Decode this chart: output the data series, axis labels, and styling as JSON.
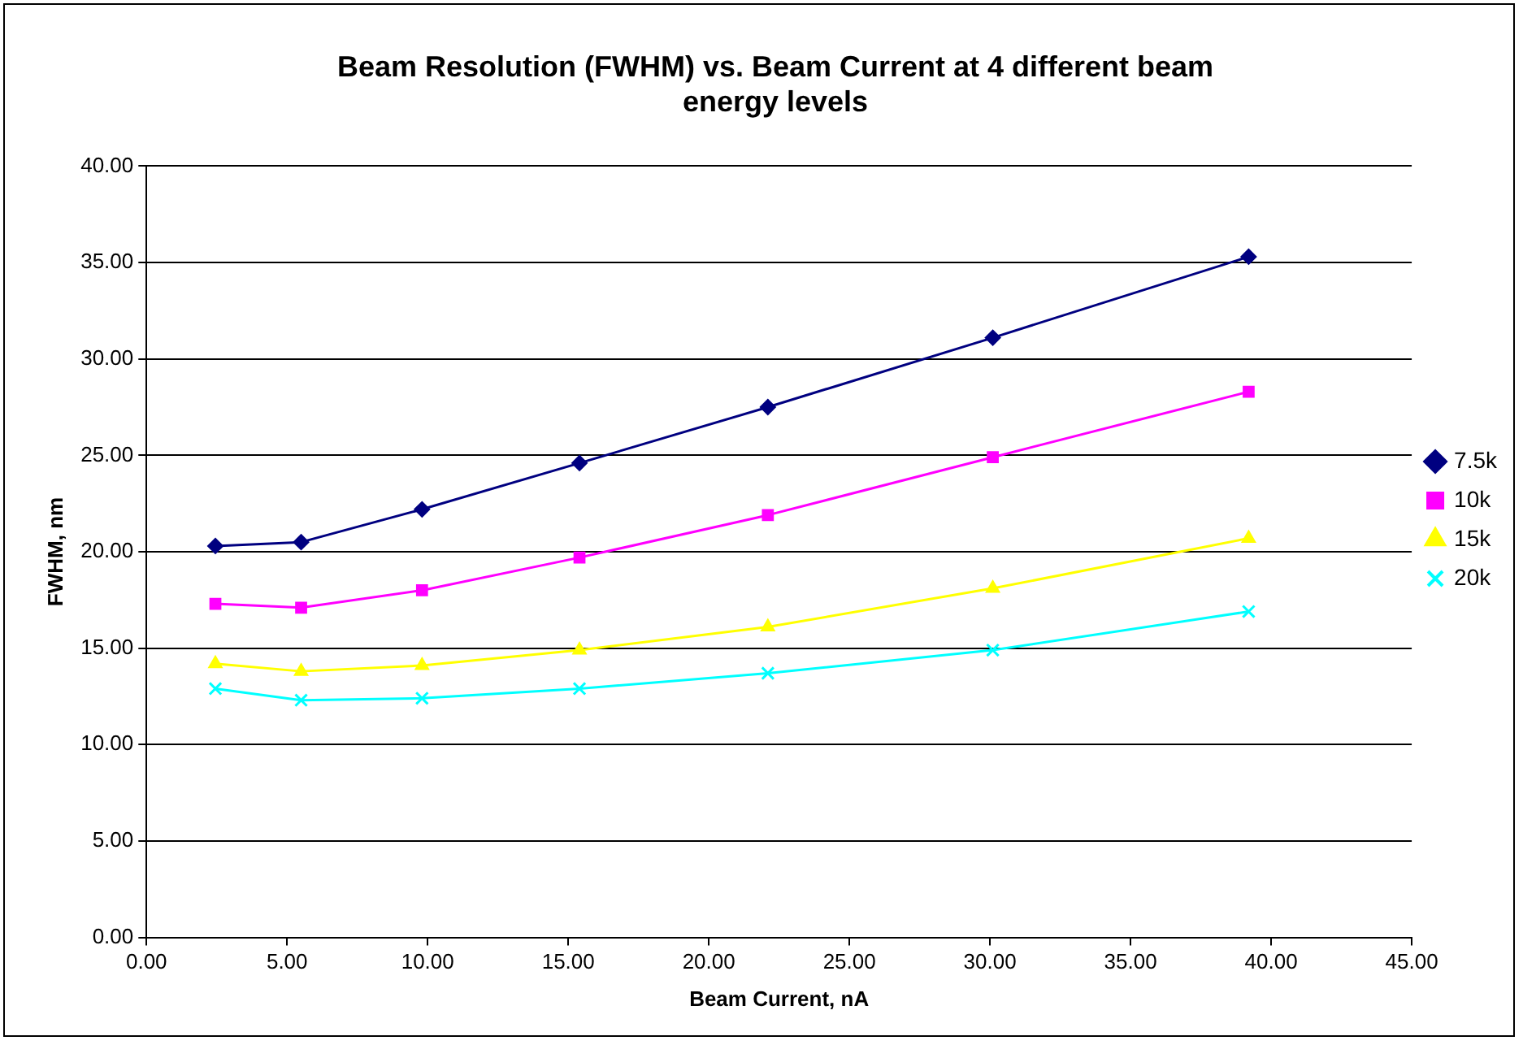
{
  "chart_data": {
    "type": "line",
    "title": "Beam Resolution (FWHM) vs. Beam Current at 4 different beam energy levels",
    "xlabel": "Beam Current, nA",
    "ylabel": "FWHM, nm",
    "x": [
      2.45,
      5.5,
      9.8,
      15.4,
      22.1,
      30.1,
      39.2
    ],
    "xlim": [
      0,
      45
    ],
    "xticks": [
      {
        "value": 0,
        "label": "0.00"
      },
      {
        "value": 5,
        "label": "5.00"
      },
      {
        "value": 10,
        "label": "10.00"
      },
      {
        "value": 15,
        "label": "15.00"
      },
      {
        "value": 20,
        "label": "20.00"
      },
      {
        "value": 25,
        "label": "25.00"
      },
      {
        "value": 30,
        "label": "30.00"
      },
      {
        "value": 35,
        "label": "35.00"
      },
      {
        "value": 40,
        "label": "40.00"
      },
      {
        "value": 45,
        "label": "45.00"
      }
    ],
    "ylim": [
      0,
      40
    ],
    "yticks": [
      {
        "value": 0,
        "label": "0.00"
      },
      {
        "value": 5,
        "label": "5.00"
      },
      {
        "value": 10,
        "label": "10.00"
      },
      {
        "value": 15,
        "label": "15.00"
      },
      {
        "value": 20,
        "label": "20.00"
      },
      {
        "value": 25,
        "label": "25.00"
      },
      {
        "value": 30,
        "label": "30.00"
      },
      {
        "value": 35,
        "label": "35.00"
      },
      {
        "value": 40,
        "label": "40.00"
      }
    ],
    "grid": "y",
    "legend": "right",
    "line_style": "solid",
    "series": [
      {
        "name": "7.5k",
        "color": "#000080",
        "marker": "diamond",
        "values": [
          20.3,
          20.5,
          22.2,
          24.6,
          27.5,
          31.1,
          35.3
        ]
      },
      {
        "name": "10k",
        "color": "#ff00ff",
        "marker": "square",
        "values": [
          17.3,
          17.1,
          18.0,
          19.7,
          21.9,
          24.9,
          28.3
        ]
      },
      {
        "name": "15k",
        "color": "#ffff00",
        "marker": "triangle",
        "values": [
          14.2,
          13.8,
          14.1,
          14.9,
          16.1,
          18.1,
          20.7
        ]
      },
      {
        "name": "20k",
        "color": "#00ffff",
        "marker": "cross",
        "values": [
          12.9,
          12.3,
          12.4,
          12.9,
          13.7,
          14.9,
          16.9
        ]
      }
    ]
  }
}
